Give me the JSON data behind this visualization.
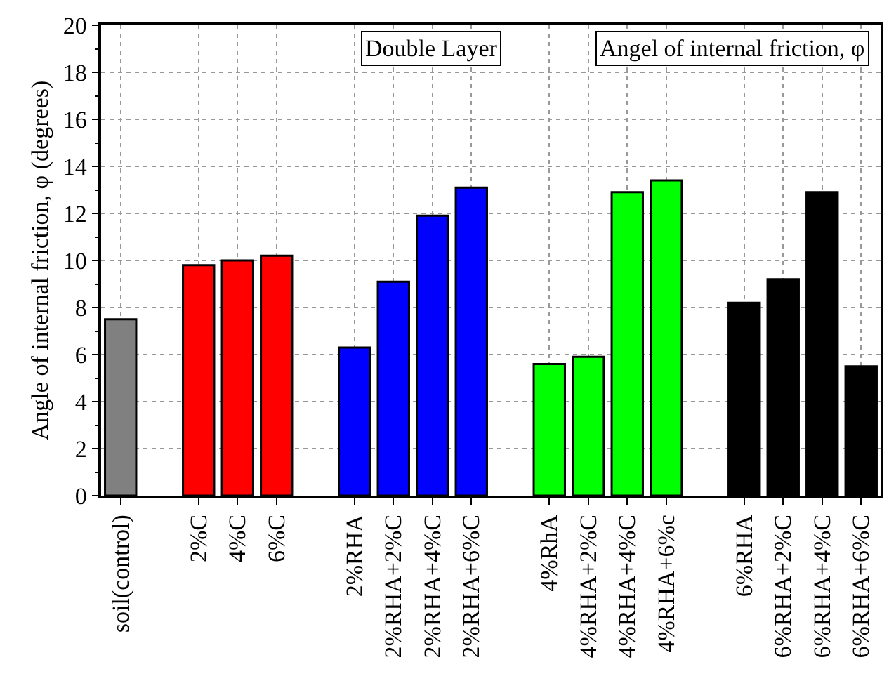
{
  "chart_data": {
    "type": "bar",
    "ylabel": "Angle of internal friction, φ (degrees)",
    "categories": [
      "soil(control)",
      null,
      "2%C",
      "4%C",
      "6%C",
      null,
      "2%RHA",
      "2%RHA+2%C",
      "2%RHA+4%C",
      "2%RHA+6%C",
      null,
      "4%RhA",
      "4%RHA+2%C",
      "4%RHA+4%C",
      "4%RHA+6%c",
      null,
      "6%RHA",
      "6%RHA+2%C",
      "6%RHA+4%C",
      "6%RHA+6%C"
    ],
    "values": [
      7.5,
      null,
      9.8,
      10.0,
      10.2,
      null,
      6.3,
      9.1,
      11.9,
      13.1,
      null,
      5.6,
      5.9,
      12.9,
      13.4,
      null,
      8.2,
      9.2,
      12.9,
      5.5
    ],
    "colors": [
      "#808080",
      null,
      "#ff0000",
      "#ff0000",
      "#ff0000",
      null,
      "#0000ff",
      "#0000ff",
      "#0000ff",
      "#0000ff",
      null,
      "#00ff00",
      "#00ff00",
      "#00ff00",
      "#00ff00",
      null,
      "#000000",
      "#000000",
      "#000000",
      "#000000"
    ],
    "ylim": [
      0,
      20
    ],
    "yticks": [
      0,
      2,
      4,
      6,
      8,
      10,
      12,
      14,
      16,
      18,
      20
    ],
    "grid": true,
    "annotations": [
      "Double Layer",
      "Angel of internal friction, φ"
    ]
  }
}
